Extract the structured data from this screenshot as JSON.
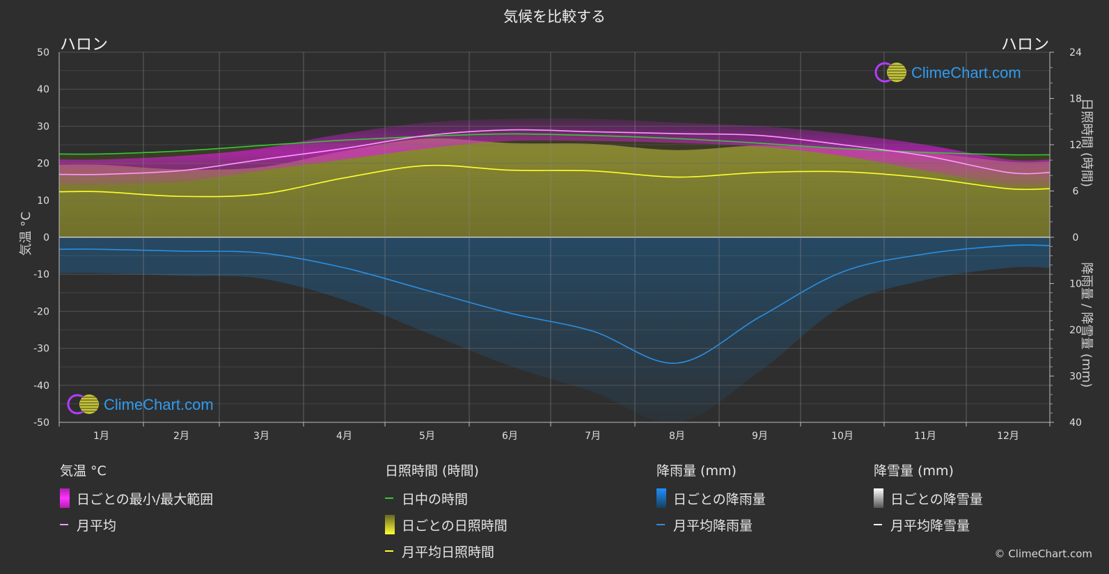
{
  "title": "気候を比較する",
  "location_left": "ハロン",
  "location_right": "ハロン",
  "axis_titles": {
    "left": "気温 °C",
    "right_top": "日照時間 (時間)",
    "right_bottom": "降雨量 / 降雪量 (mm)"
  },
  "watermark": "ClimeChart.com",
  "copyright": "© ClimeChart.com",
  "legend": {
    "temperature": {
      "title": "気温 °C",
      "range_label": "日ごとの最小/最大範囲",
      "avg_label": "月平均"
    },
    "sunshine": {
      "title": "日照時間 (時間)",
      "daylight_label": "日中の時間",
      "daily_label": "日ごとの日照時間",
      "avg_label": "月平均日照時間"
    },
    "rain": {
      "title": "降雨量 (mm)",
      "daily_label": "日ごとの降雨量",
      "avg_label": "月平均降雨量"
    },
    "snow": {
      "title": "降雪量 (mm)",
      "daily_label": "日ごとの降雪量",
      "avg_label": "月平均降雪量"
    }
  },
  "colors": {
    "background": "#2e2e2e",
    "temp_range": "#d81fd8",
    "temp_avg": "#ff99ff",
    "daylight": "#33cc33",
    "sunshine_fill": "#b5b53a",
    "sunshine_avg": "#ffff33",
    "rain": "#1a6fb0",
    "rain_avg": "#2b8fe0",
    "snow": "#ffffff",
    "watermark_text": "#2f9cf0"
  },
  "chart_data": {
    "type": "line",
    "categories": [
      "1月",
      "2月",
      "3月",
      "4月",
      "5月",
      "6月",
      "7月",
      "8月",
      "9月",
      "10月",
      "11月",
      "12月"
    ],
    "y_left": {
      "label": "気温 °C",
      "ylim": [
        -50,
        50
      ],
      "ticks": [
        50,
        40,
        30,
        20,
        10,
        0,
        -10,
        -20,
        -30,
        -40,
        -50
      ]
    },
    "y_right_top": {
      "label": "日照時間 (時間)",
      "ylim": [
        0,
        24
      ],
      "ticks": [
        24,
        18,
        12,
        6,
        0
      ]
    },
    "y_right_bottom": {
      "label": "降雨量 / 降雪量 (mm)",
      "ylim": [
        0,
        40
      ],
      "ticks": [
        10,
        20,
        30,
        40
      ]
    },
    "grid": true,
    "series": [
      {
        "name": "月平均",
        "axis": "temperature",
        "values": [
          17,
          18,
          21,
          24,
          27.5,
          29,
          28.5,
          28,
          27.5,
          25,
          22,
          17.5
        ]
      },
      {
        "name": "日中の時間",
        "axis": "sunshine",
        "values": [
          10.8,
          11.2,
          11.9,
          12.6,
          13.1,
          13.4,
          13.2,
          12.8,
          12.2,
          11.5,
          11.0,
          10.7
        ]
      },
      {
        "name": "月平均日照時間",
        "axis": "sunshine",
        "values": [
          5.9,
          5.3,
          5.6,
          7.7,
          9.3,
          8.7,
          8.6,
          7.8,
          8.4,
          8.5,
          7.7,
          6.3
        ]
      },
      {
        "name": "月平均降雨量",
        "axis": "rain",
        "values": [
          2.6,
          3.0,
          3.4,
          6.6,
          11.5,
          16.4,
          20.3,
          27.2,
          17.2,
          7.5,
          3.6,
          1.8
        ]
      },
      {
        "name": "月平均降雪量",
        "axis": "rain",
        "values": [
          0,
          0,
          0,
          0,
          0,
          0,
          0,
          0,
          0,
          0,
          0,
          0
        ]
      }
    ],
    "temp_daily_range_monthly": {
      "min": [
        14,
        15,
        18,
        21,
        24,
        26,
        26,
        25.5,
        24.5,
        22,
        18,
        14
      ],
      "max": [
        21,
        22,
        24,
        28,
        31,
        32,
        32,
        31,
        30,
        28,
        25,
        21
      ]
    }
  }
}
